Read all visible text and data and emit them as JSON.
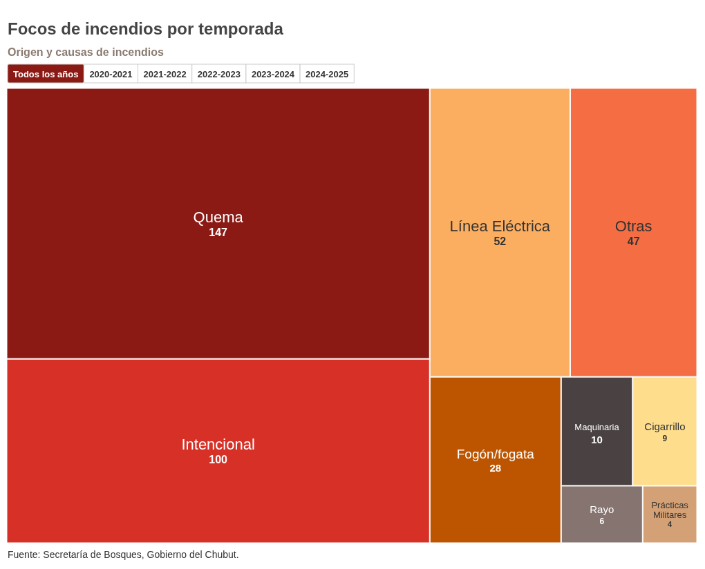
{
  "chart_data": {
    "type": "other",
    "title": "Focos de incendios por temporada",
    "subtitle": "Origen y causas de incendios",
    "categories": [
      "Quema",
      "Intencional",
      "Línea Eléctrica",
      "Otras",
      "Fogón/fogata",
      "Maquinaria",
      "Cigarrillo",
      "Rayo",
      "Prácticas Militares"
    ],
    "values": [
      147,
      100,
      52,
      47,
      28,
      10,
      9,
      6,
      4
    ],
    "colors": [
      "#8b1a14",
      "#d63027",
      "#fcae60",
      "#f46d43",
      "#bd5500",
      "#4a4242",
      "#fedd8d",
      "#857470",
      "#d4a075"
    ],
    "data_labels": true,
    "annotations": [
      "Todos los años",
      "2020-2021",
      "2021-2022",
      "2022-2023",
      "2023-2024",
      "2024-2025",
      "Fuente: Secretaría de Bosques, Gobierno del Chubut."
    ]
  }
}
